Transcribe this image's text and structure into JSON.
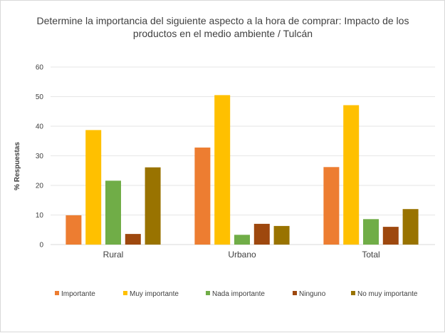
{
  "chart_data": {
    "type": "bar",
    "title_lines": [
      "Determine la importancia del siguiente aspecto a la hora de comprar: Impacto de los",
      "productos en el medio ambiente / Tulcán"
    ],
    "ylabel": "% Respuestas",
    "xlabel": "",
    "ylim": [
      0,
      60
    ],
    "yticks": [
      "0",
      "10",
      "20",
      "30",
      "40",
      "50",
      "60"
    ],
    "categories": [
      "Rural",
      "Urbano",
      "Total"
    ],
    "grid": true,
    "legend_position": "bottom",
    "series": [
      {
        "name": "Importante",
        "color": "#ED7D31",
        "values": [
          9.9,
          32.8,
          26.2
        ]
      },
      {
        "name": "Muy importante",
        "color": "#FFC000",
        "values": [
          38.7,
          50.5,
          47.1
        ]
      },
      {
        "name": "Nada importante",
        "color": "#70AD47",
        "values": [
          21.6,
          3.3,
          8.6
        ]
      },
      {
        "name": "Ninguno",
        "color": "#9E480E",
        "values": [
          3.6,
          7.0,
          6.0
        ]
      },
      {
        "name": "No muy importante",
        "color": "#997300",
        "values": [
          26.1,
          6.3,
          12.0
        ]
      }
    ]
  }
}
